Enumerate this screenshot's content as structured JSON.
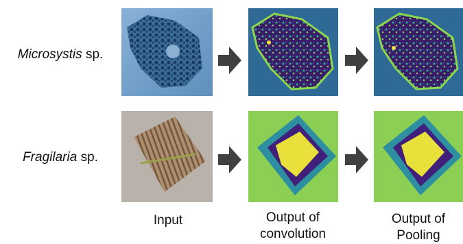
{
  "rows": [
    {
      "genus": "Microsystis",
      "suffix": "sp."
    },
    {
      "genus": "Fragilaria",
      "suffix": "sp."
    }
  ],
  "columns": [
    {
      "lines": [
        "Input"
      ]
    },
    {
      "lines": [
        "Output of",
        "convolution"
      ]
    },
    {
      "lines": [
        "Output of",
        "Pooling"
      ]
    }
  ]
}
